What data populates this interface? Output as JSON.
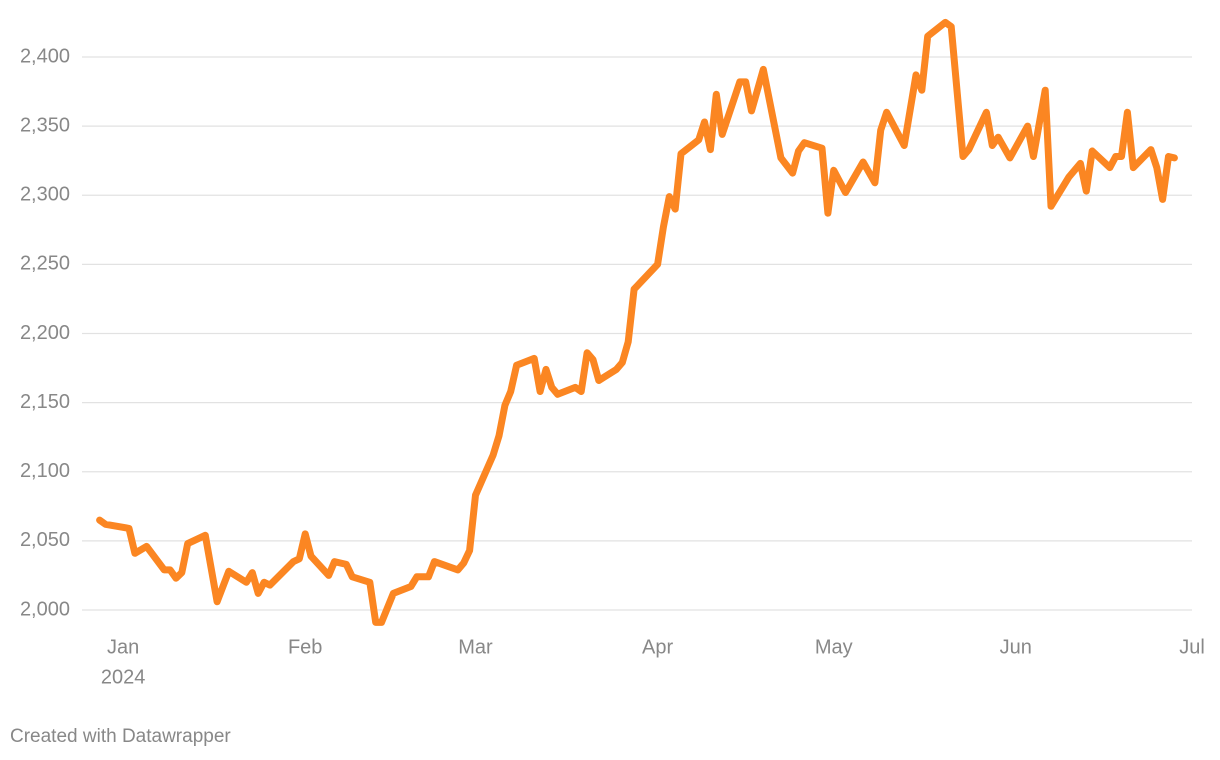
{
  "chart_data": {
    "type": "line",
    "x": [
      -4,
      -3,
      1,
      2,
      4,
      7,
      8,
      9,
      10,
      11,
      14,
      16,
      18,
      21,
      22,
      23,
      24,
      25,
      29,
      30,
      31,
      32,
      35,
      36,
      38,
      39,
      42,
      43,
      44,
      46,
      49,
      50,
      52,
      53,
      57,
      58,
      59,
      60,
      63,
      64,
      65,
      66,
      67,
      70,
      71,
      72,
      73,
      74,
      77,
      78,
      79,
      80,
      81,
      84,
      85,
      86,
      87,
      91,
      92,
      93,
      94,
      95,
      98,
      99,
      100,
      101,
      102,
      105,
      106,
      107,
      109,
      112,
      114,
      115,
      116,
      119,
      120,
      121,
      123,
      126,
      128,
      129,
      130,
      133,
      135,
      136,
      137,
      140,
      141,
      143,
      144,
      147,
      148,
      149,
      151,
      154,
      155,
      157,
      158,
      161,
      163,
      164,
      165,
      168,
      169,
      170,
      171,
      172,
      175,
      176,
      177,
      178,
      179
    ],
    "series": [
      {
        "color": "#fb8622",
        "values": [
          2065,
          2062,
          2059,
          2041,
          2046,
          2029,
          2029,
          2023,
          2027,
          2048,
          2054,
          2006,
          2028,
          2020,
          2027,
          2012,
          2020,
          2018,
          2035,
          2037,
          2055,
          2039,
          2025,
          2035,
          2033,
          2024,
          2020,
          1991,
          1991,
          2012,
          2017,
          2024,
          2024,
          2035,
          2029,
          2034,
          2043,
          2083,
          2112,
          2126,
          2148,
          2158,
          2177,
          2182,
          2158,
          2174,
          2161,
          2156,
          2161,
          2158,
          2186,
          2181,
          2166,
          2174,
          2179,
          2194,
          2232,
          2250,
          2277,
          2299,
          2290,
          2330,
          2340,
          2353,
          2333,
          2373,
          2344,
          2382,
          2382,
          2361,
          2391,
          2327,
          2316,
          2332,
          2338,
          2334,
          2287,
          2318,
          2302,
          2324,
          2309,
          2347,
          2360,
          2336,
          2387,
          2376,
          2415,
          2425,
          2422,
          2328,
          2333,
          2360,
          2336,
          2342,
          2327,
          2350,
          2328,
          2376,
          2292,
          2313,
          2323,
          2303,
          2332,
          2320,
          2328,
          2328,
          2360,
          2320,
          2333,
          2320,
          2297,
          2328,
          2327
        ]
      }
    ],
    "xlim": [
      -7,
      182
    ],
    "xticks": [
      {
        "value": 0,
        "label": "Jan"
      },
      {
        "value": 31,
        "label": "Feb"
      },
      {
        "value": 60,
        "label": "Mar"
      },
      {
        "value": 91,
        "label": "Apr"
      },
      {
        "value": 121,
        "label": "May"
      },
      {
        "value": 152,
        "label": "Jun"
      },
      {
        "value": 182,
        "label": "Jul"
      }
    ],
    "x_year_label": "2024",
    "ylim": [
      1990,
      2430
    ],
    "yticks": [
      {
        "value": 2000,
        "label": "2,000"
      },
      {
        "value": 2050,
        "label": "2,050"
      },
      {
        "value": 2100,
        "label": "2,100"
      },
      {
        "value": 2150,
        "label": "2,150"
      },
      {
        "value": 2200,
        "label": "2,200"
      },
      {
        "value": 2250,
        "label": "2,250"
      },
      {
        "value": 2300,
        "label": "2,300"
      },
      {
        "value": 2350,
        "label": "2,350"
      },
      {
        "value": 2400,
        "label": "2,400"
      }
    ],
    "grid": true,
    "footer": "Created with Datawrapper"
  }
}
